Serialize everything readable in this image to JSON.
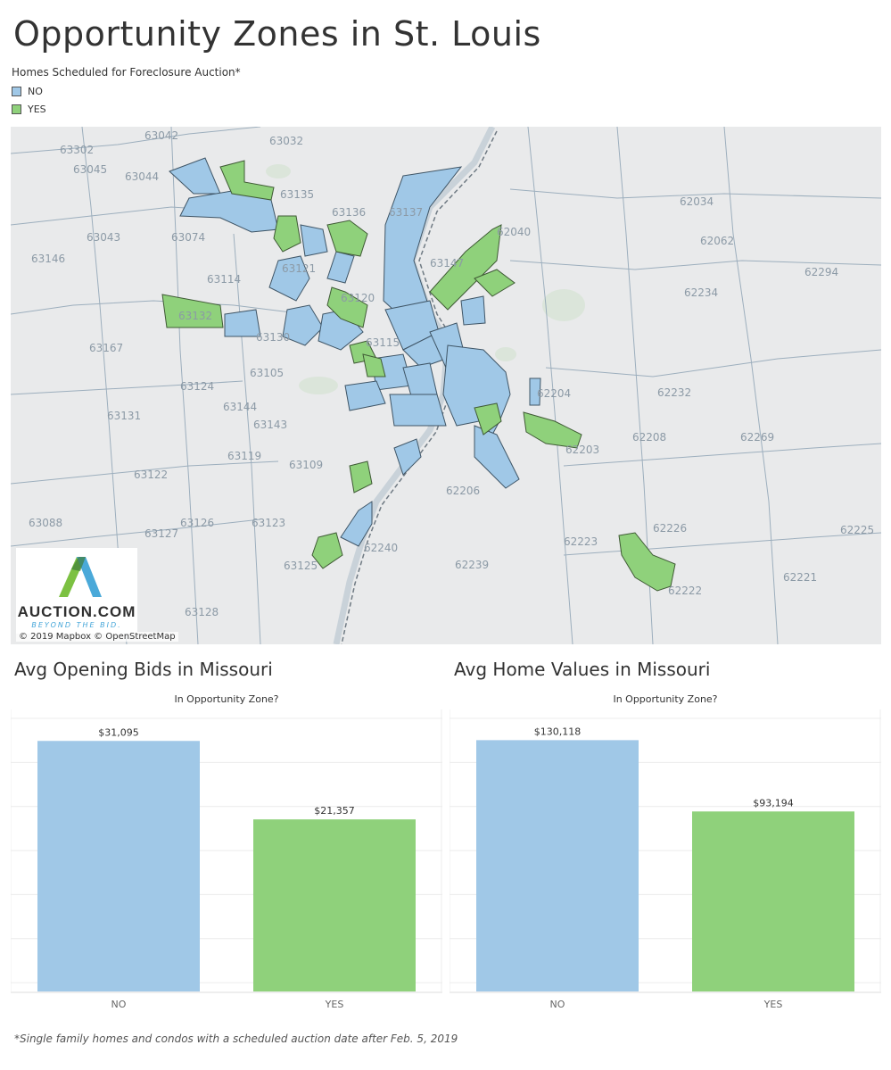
{
  "title": "Opportunity Zones in St. Louis",
  "legend": {
    "title": "Homes Scheduled for Foreclosure Auction*",
    "items": [
      {
        "label": "NO",
        "color": "#a0c8e7"
      },
      {
        "label": "YES",
        "color": "#8fd17b"
      }
    ]
  },
  "map": {
    "attribution": "© 2019 Mapbox © OpenStreetMap",
    "logo": {
      "word": "AUCTION.COM",
      "tagline": "BEYOND THE BID."
    },
    "zip_labels": [
      "63042",
      "63032",
      "63302",
      "63045",
      "63044",
      "63135",
      "63136",
      "63137",
      "63043",
      "63074",
      "62040",
      "62034",
      "62062",
      "63146",
      "63114",
      "62294",
      "62234",
      "63132",
      "63130",
      "63167",
      "63105",
      "63124",
      "62232",
      "63144",
      "63143",
      "63131",
      "62208",
      "62269",
      "63119",
      "63109",
      "63122",
      "62206",
      "63088",
      "63126",
      "63123",
      "63127",
      "62223",
      "62226",
      "62225",
      "62240",
      "62239",
      "63125",
      "62221",
      "62222",
      "63128",
      "62204",
      "62203",
      "63147",
      "63115",
      "63120",
      "63121"
    ]
  },
  "footnote": "*Single family homes and condos with a scheduled auction date after Feb. 5, 2019",
  "chart_data": [
    {
      "type": "bar",
      "title": "Avg Opening Bids  in Missouri",
      "subtitle": "In Opportunity Zone?",
      "categories": [
        "NO",
        "YES"
      ],
      "values": [
        31095,
        21357
      ],
      "data_labels": [
        "$31,095",
        "$21,357"
      ],
      "colors": [
        "#a0c8e7",
        "#8fd17b"
      ],
      "ylim": [
        0,
        35000
      ],
      "grid": true
    },
    {
      "type": "bar",
      "title": "Avg Home Values in Missouri",
      "subtitle": "In Opportunity Zone?",
      "categories": [
        "NO",
        "YES"
      ],
      "values": [
        130118,
        93194
      ],
      "data_labels": [
        "$130,118",
        "$93,194"
      ],
      "colors": [
        "#a0c8e7",
        "#8fd17b"
      ],
      "ylim": [
        0,
        146000
      ],
      "grid": true
    }
  ]
}
